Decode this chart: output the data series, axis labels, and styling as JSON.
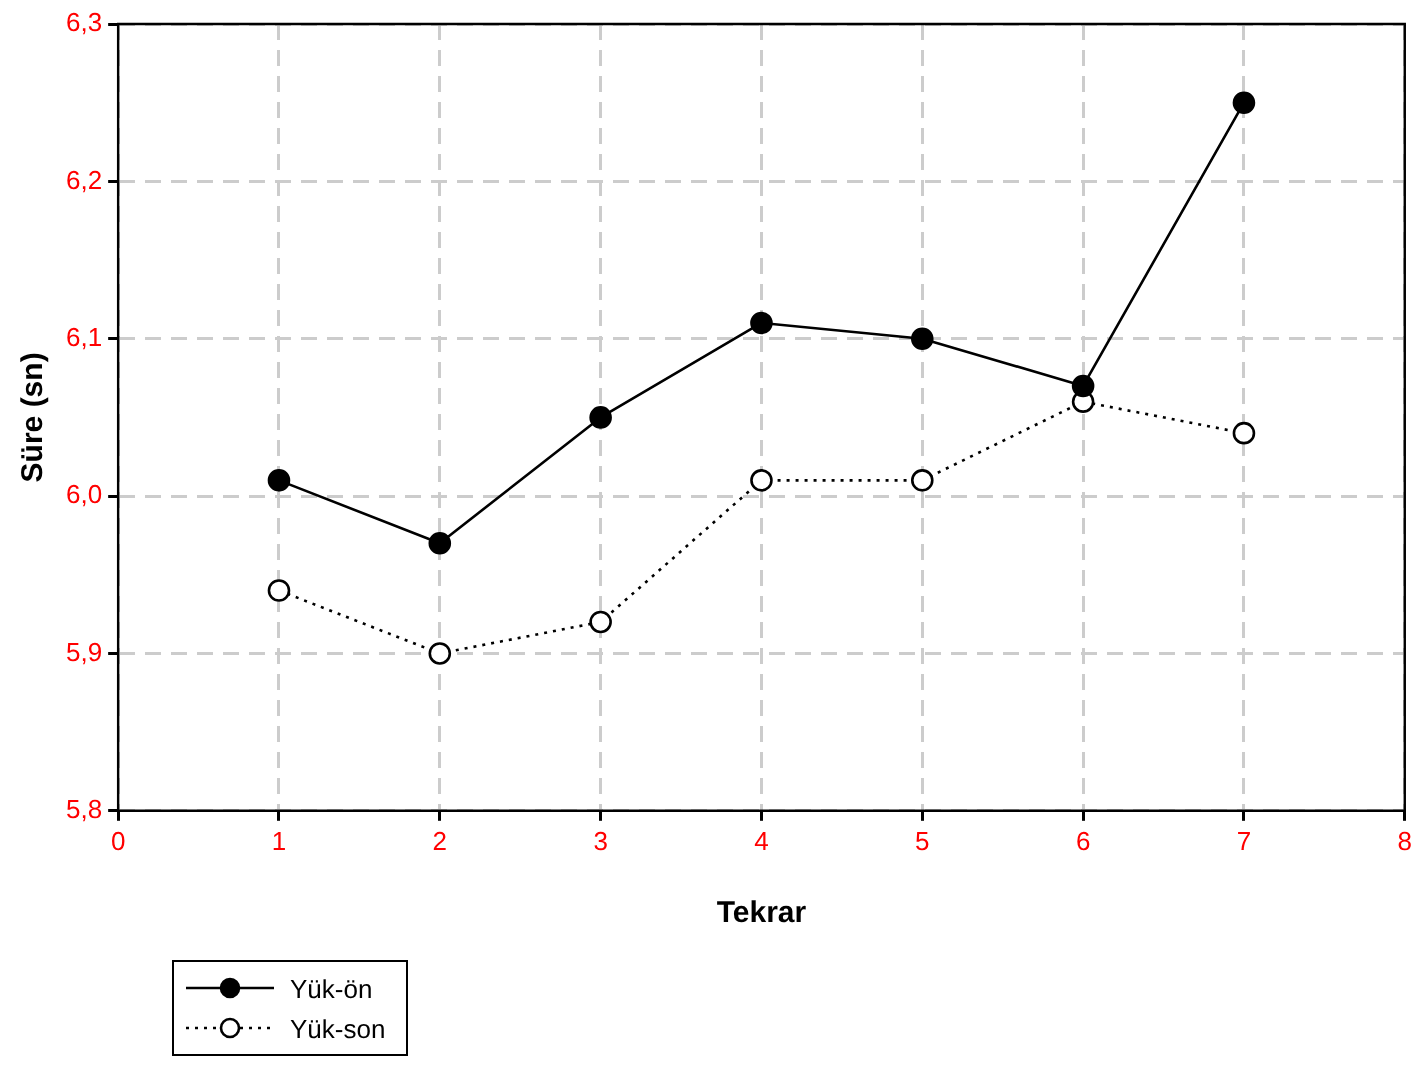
{
  "chart_data": {
    "type": "line",
    "xlabel": "Tekrar",
    "ylabel": "Süre (sn)",
    "x": [
      1,
      2,
      3,
      4,
      5,
      6,
      7
    ],
    "series": [
      {
        "name": "Yük-ön",
        "color": "#000000",
        "values": [
          6.01,
          5.97,
          6.05,
          6.11,
          6.1,
          6.07,
          6.25
        ],
        "line_style": "solid"
      },
      {
        "name": "Yük-son",
        "color": "#000000",
        "values": [
          5.94,
          5.9,
          5.92,
          6.01,
          6.01,
          6.06,
          6.04
        ],
        "line_style": "dotted"
      }
    ],
    "xlim": [
      0,
      8
    ],
    "xticks": [
      0,
      1,
      2,
      3,
      4,
      5,
      6,
      7,
      8
    ],
    "ylim": [
      5.8,
      6.3
    ],
    "yticks": [
      {
        "value": 5.8,
        "label": "5,8"
      },
      {
        "value": 5.9,
        "label": "5,9"
      },
      {
        "value": 6.0,
        "label": "6,0"
      },
      {
        "value": 6.1,
        "label": "6,1"
      },
      {
        "value": 6.2,
        "label": "6,2"
      },
      {
        "value": 6.3,
        "label": "6,3"
      }
    ],
    "grid": true,
    "legend": "bottom left",
    "marker": "circle"
  }
}
